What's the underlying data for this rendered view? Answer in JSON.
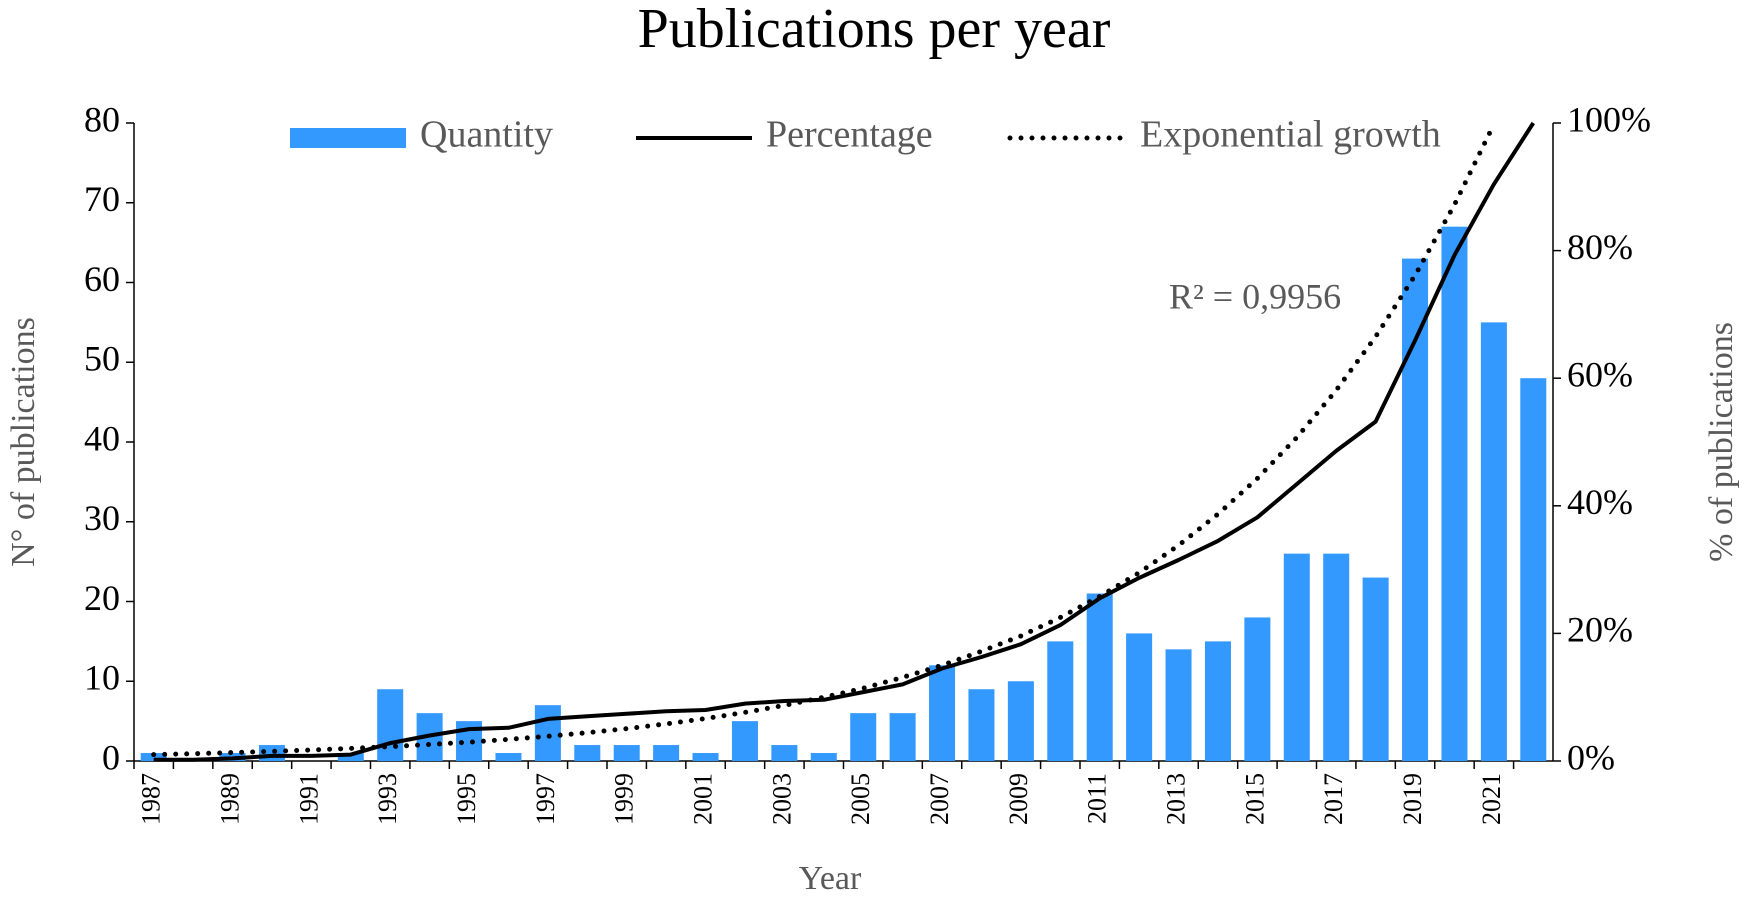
{
  "chart_data": {
    "type": "bar",
    "title": "Publications per year",
    "x_label": "Year",
    "y_label": "N° of publications",
    "y2_label": "% of publications",
    "annotation": "R² = 0,9956",
    "categories": [
      "1987",
      null,
      "1989",
      null,
      "1991",
      null,
      "1993",
      null,
      "1995",
      null,
      "1997",
      null,
      "1999",
      null,
      "2001",
      null,
      "2003",
      null,
      "2005",
      null,
      "2007",
      null,
      "2009",
      null,
      "2011",
      null,
      "2013",
      null,
      "2015",
      null,
      "2017",
      null,
      "2019",
      null,
      "2021",
      null
    ],
    "series": [
      {
        "name": "Quantity",
        "type": "bar",
        "color": "#3399ff",
        "values": [
          1,
          0,
          1,
          2,
          0,
          1,
          9,
          6,
          5,
          1,
          7,
          2,
          2,
          2,
          1,
          5,
          2,
          1,
          6,
          6,
          12,
          9,
          10,
          15,
          21,
          16,
          14,
          15,
          18,
          26,
          26,
          23,
          63,
          67,
          55,
          48
        ]
      },
      {
        "name": "Percentage",
        "type": "line",
        "axis": "y2",
        "color": "#000000",
        "dash": "solid",
        "values": [
          0.2,
          0.2,
          0.4,
          0.8,
          0.8,
          1.0,
          2.8,
          4.0,
          5.0,
          5.2,
          6.6,
          7.0,
          7.4,
          7.8,
          8.0,
          9.0,
          9.4,
          9.6,
          10.8,
          12.0,
          14.5,
          16.3,
          18.3,
          21.3,
          25.5,
          28.7,
          31.5,
          34.5,
          38.2,
          43.4,
          48.6,
          53.2,
          65.9,
          79.3,
          90.4,
          100
        ]
      },
      {
        "name": "Exponential growth",
        "type": "line",
        "axis": "y2",
        "color": "#000000",
        "dash": "dotted",
        "values": [
          1.0,
          1.15,
          1.31,
          1.5,
          1.72,
          1.97,
          2.25,
          2.58,
          2.95,
          3.38,
          3.87,
          4.43,
          5.07,
          5.81,
          6.65,
          7.61,
          8.72,
          9.98,
          11.4,
          13.1,
          15.0,
          17.2,
          19.6,
          22.5,
          25.8,
          29.5,
          33.8,
          38.7,
          44.3,
          50.7,
          58.1,
          66.5,
          76.1,
          87.2,
          99.8,
          null
        ]
      }
    ],
    "ylim": [
      0,
      80
    ],
    "yticks": [
      0,
      10,
      20,
      30,
      40,
      50,
      60,
      70,
      80
    ],
    "y2lim": [
      0,
      100
    ],
    "y2ticks": [
      {
        "value": 0,
        "label": "0%"
      },
      {
        "value": 20,
        "label": "20%"
      },
      {
        "value": 40,
        "label": "40%"
      },
      {
        "value": 60,
        "label": "60%"
      },
      {
        "value": 80,
        "label": "80%"
      },
      {
        "value": 100,
        "label": "100%"
      }
    ],
    "legend": "top"
  }
}
